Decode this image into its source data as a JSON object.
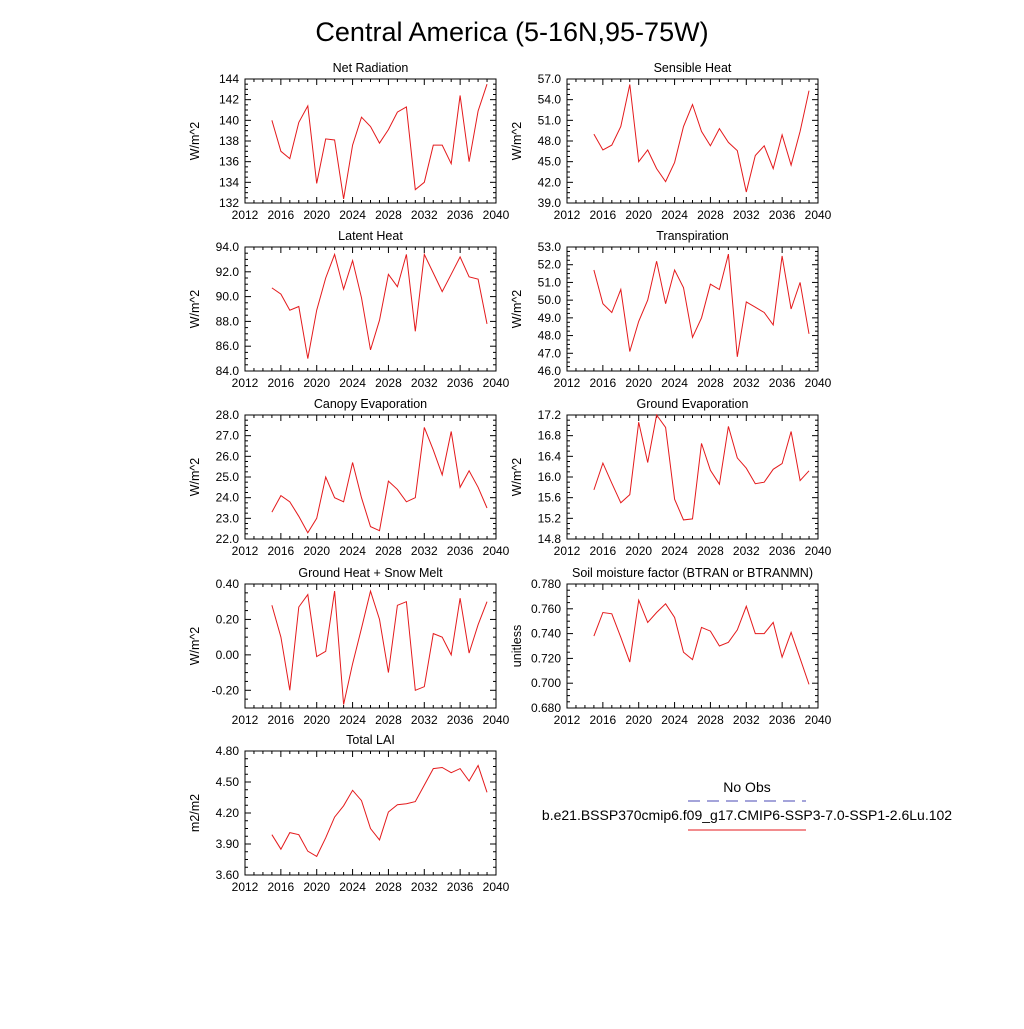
{
  "main_title": "Central America (5-16N,95-75W)",
  "legend": {
    "obs_label": "No Obs",
    "obs_color": "#4a4ab4",
    "model_label": "b.e21.BSSP370cmip6.f09_g17.CMIP6-SSP3-7.0-SSP1-2.6Lu.102",
    "model_color": "#e41a1c"
  },
  "chart_data": [
    {
      "type": "line",
      "title": "Net Radiation",
      "ylabel": "W/m^2",
      "xlim": [
        2012,
        2040
      ],
      "ylim": [
        132,
        144
      ],
      "xticks": [
        "2012",
        "2016",
        "2020",
        "2024",
        "2028",
        "2032",
        "2036",
        "2040"
      ],
      "yticks": [
        "132",
        "134",
        "136",
        "138",
        "140",
        "142",
        "144"
      ],
      "x": [
        2015,
        2016,
        2017,
        2018,
        2019,
        2020,
        2021,
        2022,
        2023,
        2024,
        2025,
        2026,
        2027,
        2028,
        2029,
        2030,
        2031,
        2032,
        2033,
        2034,
        2035,
        2036,
        2037,
        2038,
        2039
      ],
      "values": [
        140.0,
        137.0,
        136.3,
        139.8,
        141.4,
        133.9,
        138.2,
        138.1,
        132.4,
        137.6,
        140.3,
        139.4,
        137.8,
        139.1,
        140.8,
        141.3,
        133.3,
        134.0,
        137.6,
        137.6,
        135.8,
        142.4,
        136.0,
        140.9,
        143.5
      ]
    },
    {
      "type": "line",
      "title": "Sensible Heat",
      "ylabel": "W/m^2",
      "xlim": [
        2012,
        2040
      ],
      "ylim": [
        39.0,
        57.0
      ],
      "xticks": [
        "2012",
        "2016",
        "2020",
        "2024",
        "2028",
        "2032",
        "2036",
        "2040"
      ],
      "yticks": [
        "39.0",
        "42.0",
        "45.0",
        "48.0",
        "51.0",
        "54.0",
        "57.0"
      ],
      "x": [
        2015,
        2016,
        2017,
        2018,
        2019,
        2020,
        2021,
        2022,
        2023,
        2024,
        2025,
        2026,
        2027,
        2028,
        2029,
        2030,
        2031,
        2032,
        2033,
        2034,
        2035,
        2036,
        2037,
        2038,
        2039
      ],
      "values": [
        49.0,
        46.7,
        47.4,
        50.1,
        56.2,
        45.0,
        46.7,
        44.0,
        42.1,
        44.9,
        50.1,
        53.3,
        49.4,
        47.3,
        49.8,
        47.8,
        46.6,
        40.6,
        45.9,
        47.3,
        44.0,
        48.9,
        44.5,
        49.4,
        55.3
      ]
    },
    {
      "type": "line",
      "title": "Latent Heat",
      "ylabel": "W/m^2",
      "xlim": [
        2012,
        2040
      ],
      "ylim": [
        84.0,
        94.0
      ],
      "xticks": [
        "2012",
        "2016",
        "2020",
        "2024",
        "2028",
        "2032",
        "2036",
        "2040"
      ],
      "yticks": [
        "84.0",
        "86.0",
        "88.0",
        "90.0",
        "92.0",
        "94.0"
      ],
      "x": [
        2015,
        2016,
        2017,
        2018,
        2019,
        2020,
        2021,
        2022,
        2023,
        2024,
        2025,
        2026,
        2027,
        2028,
        2029,
        2030,
        2031,
        2032,
        2033,
        2034,
        2035,
        2036,
        2037,
        2038,
        2039
      ],
      "values": [
        90.7,
        90.2,
        88.9,
        89.2,
        85.0,
        88.9,
        91.5,
        93.4,
        90.6,
        92.9,
        89.9,
        85.7,
        88.1,
        91.8,
        90.8,
        93.4,
        87.2,
        93.4,
        91.9,
        90.4,
        91.8,
        93.2,
        91.6,
        91.4,
        87.8
      ]
    },
    {
      "type": "line",
      "title": "Transpiration",
      "ylabel": "W/m^2",
      "xlim": [
        2012,
        2040
      ],
      "ylim": [
        46.0,
        53.0
      ],
      "xticks": [
        "2012",
        "2016",
        "2020",
        "2024",
        "2028",
        "2032",
        "2036",
        "2040"
      ],
      "yticks": [
        "46.0",
        "47.0",
        "48.0",
        "49.0",
        "50.0",
        "51.0",
        "52.0",
        "53.0"
      ],
      "x": [
        2015,
        2016,
        2017,
        2018,
        2019,
        2020,
        2021,
        2022,
        2023,
        2024,
        2025,
        2026,
        2027,
        2028,
        2029,
        2030,
        2031,
        2032,
        2033,
        2034,
        2035,
        2036,
        2037,
        2038,
        2039
      ],
      "values": [
        51.7,
        49.8,
        49.3,
        50.6,
        47.1,
        48.8,
        50.0,
        52.2,
        49.8,
        51.7,
        50.7,
        47.9,
        49.0,
        50.9,
        50.6,
        52.6,
        46.8,
        49.9,
        49.6,
        49.3,
        48.6,
        52.5,
        49.5,
        51.0,
        48.1
      ]
    },
    {
      "type": "line",
      "title": "Canopy Evaporation",
      "ylabel": "W/m^2",
      "xlim": [
        2012,
        2040
      ],
      "ylim": [
        22.0,
        28.0
      ],
      "xticks": [
        "2012",
        "2016",
        "2020",
        "2024",
        "2028",
        "2032",
        "2036",
        "2040"
      ],
      "yticks": [
        "22.0",
        "23.0",
        "24.0",
        "25.0",
        "26.0",
        "27.0",
        "28.0"
      ],
      "x": [
        2015,
        2016,
        2017,
        2018,
        2019,
        2020,
        2021,
        2022,
        2023,
        2024,
        2025,
        2026,
        2027,
        2028,
        2029,
        2030,
        2031,
        2032,
        2033,
        2034,
        2035,
        2036,
        2037,
        2038,
        2039
      ],
      "values": [
        23.3,
        24.1,
        23.8,
        23.1,
        22.3,
        23.0,
        25.0,
        24.0,
        23.8,
        25.7,
        24.0,
        22.6,
        22.4,
        24.8,
        24.4,
        23.8,
        24.0,
        27.4,
        26.3,
        25.1,
        27.2,
        24.5,
        25.3,
        24.5,
        23.5
      ]
    },
    {
      "type": "line",
      "title": "Ground Evaporation",
      "ylabel": "W/m^2",
      "xlim": [
        2012,
        2040
      ],
      "ylim": [
        14.8,
        17.2
      ],
      "xticks": [
        "2012",
        "2016",
        "2020",
        "2024",
        "2028",
        "2032",
        "2036",
        "2040"
      ],
      "yticks": [
        "14.8",
        "15.2",
        "15.6",
        "16.0",
        "16.4",
        "16.8",
        "17.2"
      ],
      "x": [
        2015,
        2016,
        2017,
        2018,
        2019,
        2020,
        2021,
        2022,
        2023,
        2024,
        2025,
        2026,
        2027,
        2028,
        2029,
        2030,
        2031,
        2032,
        2033,
        2034,
        2035,
        2036,
        2037,
        2038,
        2039
      ],
      "values": [
        15.75,
        16.27,
        15.88,
        15.5,
        15.66,
        17.06,
        16.28,
        17.2,
        16.96,
        15.57,
        15.17,
        15.19,
        16.65,
        16.13,
        15.86,
        16.98,
        16.37,
        16.17,
        15.87,
        15.9,
        16.15,
        16.26,
        16.88,
        15.93,
        16.12
      ]
    },
    {
      "type": "line",
      "title": "Ground Heat + Snow Melt",
      "ylabel": "W/m^2",
      "xlim": [
        2012,
        2040
      ],
      "ylim": [
        -0.3,
        0.4
      ],
      "xticks": [
        "2012",
        "2016",
        "2020",
        "2024",
        "2028",
        "2032",
        "2036",
        "2040"
      ],
      "yticks": [
        "-0.20",
        "0.00",
        "0.20",
        "0.40"
      ],
      "ytick_values": [
        -0.2,
        0.0,
        0.2,
        0.4
      ],
      "x": [
        2015,
        2016,
        2017,
        2018,
        2019,
        2020,
        2021,
        2022,
        2023,
        2024,
        2025,
        2026,
        2027,
        2028,
        2029,
        2030,
        2031,
        2032,
        2033,
        2034,
        2035,
        2036,
        2037,
        2038,
        2039
      ],
      "values": [
        0.28,
        0.1,
        -0.2,
        0.27,
        0.34,
        -0.01,
        0.02,
        0.36,
        -0.28,
        -0.05,
        0.15,
        0.36,
        0.2,
        -0.1,
        0.28,
        0.3,
        -0.2,
        -0.18,
        0.12,
        0.1,
        0.0,
        0.32,
        0.01,
        0.17,
        0.3
      ]
    },
    {
      "type": "line",
      "title": "Soil moisture factor (BTRAN or BTRANMN)",
      "ylabel": "unitless",
      "xlim": [
        2012,
        2040
      ],
      "ylim": [
        0.68,
        0.78
      ],
      "xticks": [
        "2012",
        "2016",
        "2020",
        "2024",
        "2028",
        "2032",
        "2036",
        "2040"
      ],
      "yticks": [
        "0.680",
        "0.700",
        "0.720",
        "0.740",
        "0.760",
        "0.780"
      ],
      "x": [
        2015,
        2016,
        2017,
        2018,
        2019,
        2020,
        2021,
        2022,
        2023,
        2024,
        2025,
        2026,
        2027,
        2028,
        2029,
        2030,
        2031,
        2032,
        2033,
        2034,
        2035,
        2036,
        2037,
        2038,
        2039
      ],
      "values": [
        0.738,
        0.757,
        0.756,
        0.737,
        0.717,
        0.767,
        0.749,
        0.757,
        0.764,
        0.753,
        0.725,
        0.719,
        0.745,
        0.742,
        0.73,
        0.733,
        0.743,
        0.762,
        0.74,
        0.74,
        0.749,
        0.721,
        0.741,
        0.72,
        0.699
      ]
    },
    {
      "type": "line",
      "title": "Total LAI",
      "ylabel": "m2/m2",
      "xlim": [
        2012,
        2040
      ],
      "ylim": [
        3.6,
        4.8
      ],
      "xticks": [
        "2012",
        "2016",
        "2020",
        "2024",
        "2028",
        "2032",
        "2036",
        "2040"
      ],
      "yticks": [
        "3.60",
        "3.90",
        "4.20",
        "4.50",
        "4.80"
      ],
      "x": [
        2015,
        2016,
        2017,
        2018,
        2019,
        2020,
        2021,
        2022,
        2023,
        2024,
        2025,
        2026,
        2027,
        2028,
        2029,
        2030,
        2031,
        2032,
        2033,
        2034,
        2035,
        2036,
        2037,
        2038,
        2039
      ],
      "values": [
        3.99,
        3.85,
        4.01,
        3.99,
        3.83,
        3.78,
        3.96,
        4.16,
        4.27,
        4.42,
        4.32,
        4.05,
        3.94,
        4.21,
        4.28,
        4.29,
        4.31,
        4.47,
        4.63,
        4.64,
        4.59,
        4.63,
        4.51,
        4.66,
        4.4
      ]
    }
  ]
}
